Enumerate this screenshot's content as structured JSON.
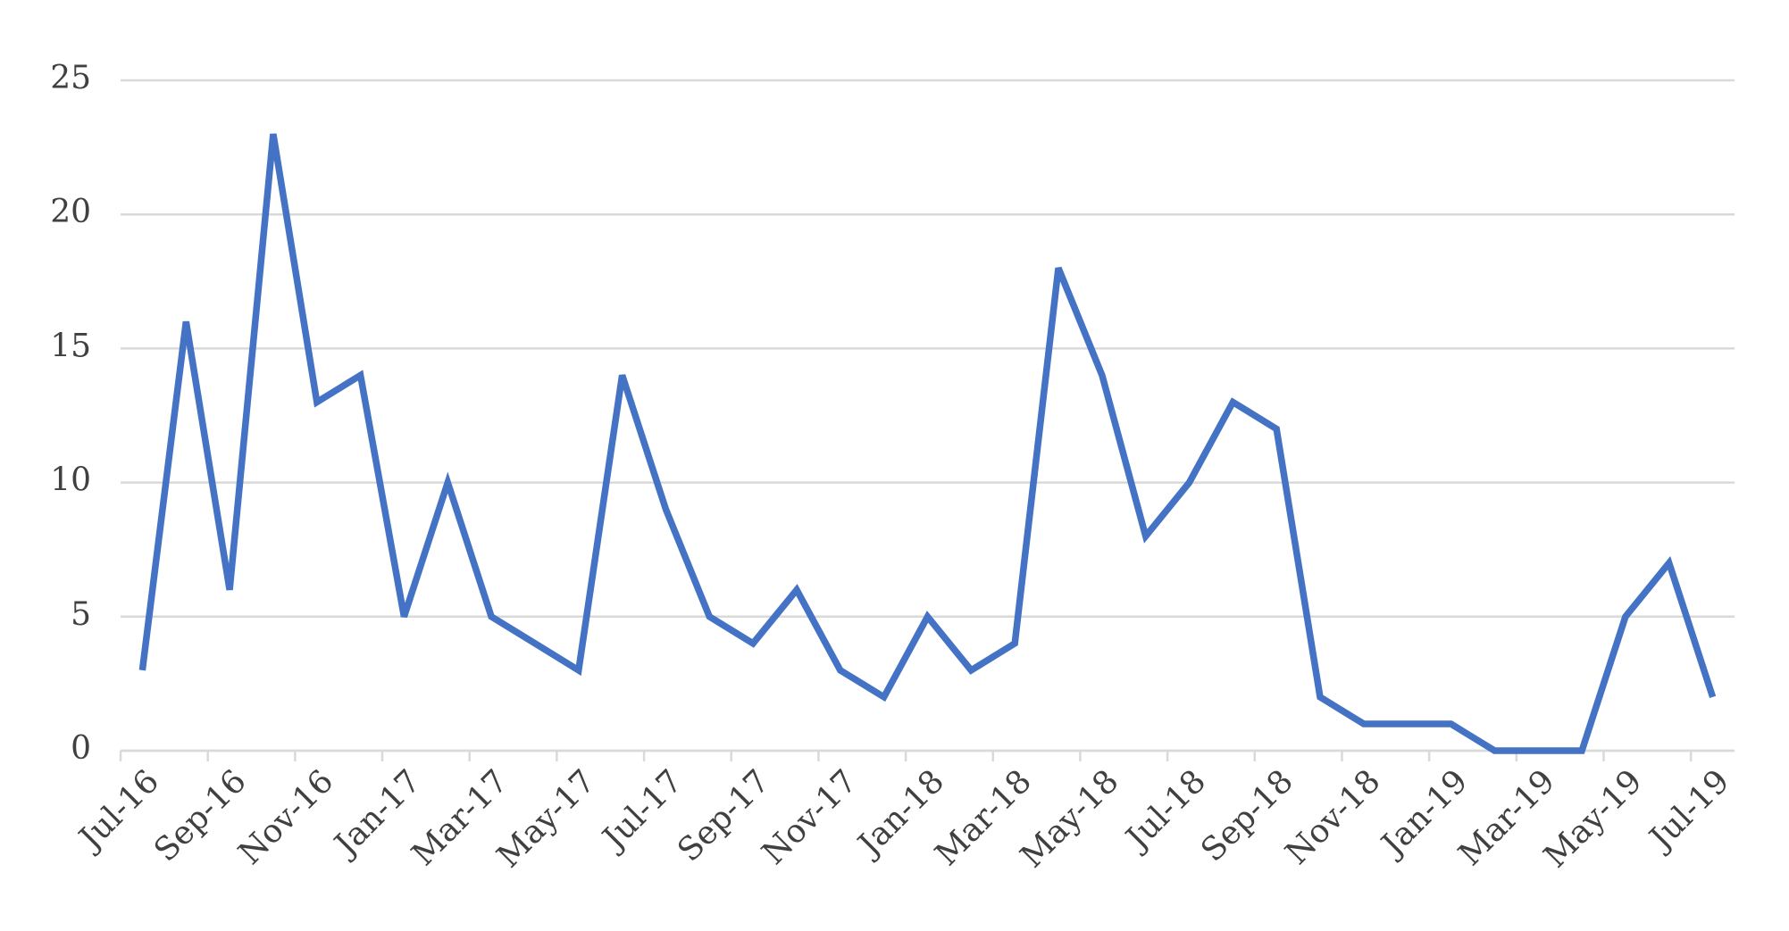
{
  "chart_data": {
    "type": "line",
    "categories": [
      "Jul-16",
      null,
      "Sep-16",
      null,
      "Nov-16",
      null,
      "Jan-17",
      null,
      "Mar-17",
      null,
      "May-17",
      null,
      "Jul-17",
      null,
      "Sep-17",
      null,
      "Nov-17",
      null,
      "Jan-18",
      null,
      "Mar-18",
      null,
      "May-18",
      null,
      "Jul-18",
      null,
      "Sep-18",
      null,
      "Nov-18",
      null,
      "Jan-19",
      null,
      "Mar-19",
      null,
      "May-19",
      null,
      "Jul-19"
    ],
    "values": [
      3,
      16,
      6,
      23,
      13,
      14,
      5,
      10,
      5,
      4,
      3,
      14,
      9,
      5,
      4,
      6,
      3,
      2,
      5,
      3,
      4,
      18,
      14,
      8,
      10,
      13,
      12,
      2,
      1,
      1,
      1,
      0,
      0,
      0,
      5,
      7,
      2
    ],
    "color": "#4472c4",
    "ylim": [
      0,
      25
    ],
    "yticks": [
      0,
      5,
      10,
      15,
      20,
      25
    ],
    "grid": true
  }
}
